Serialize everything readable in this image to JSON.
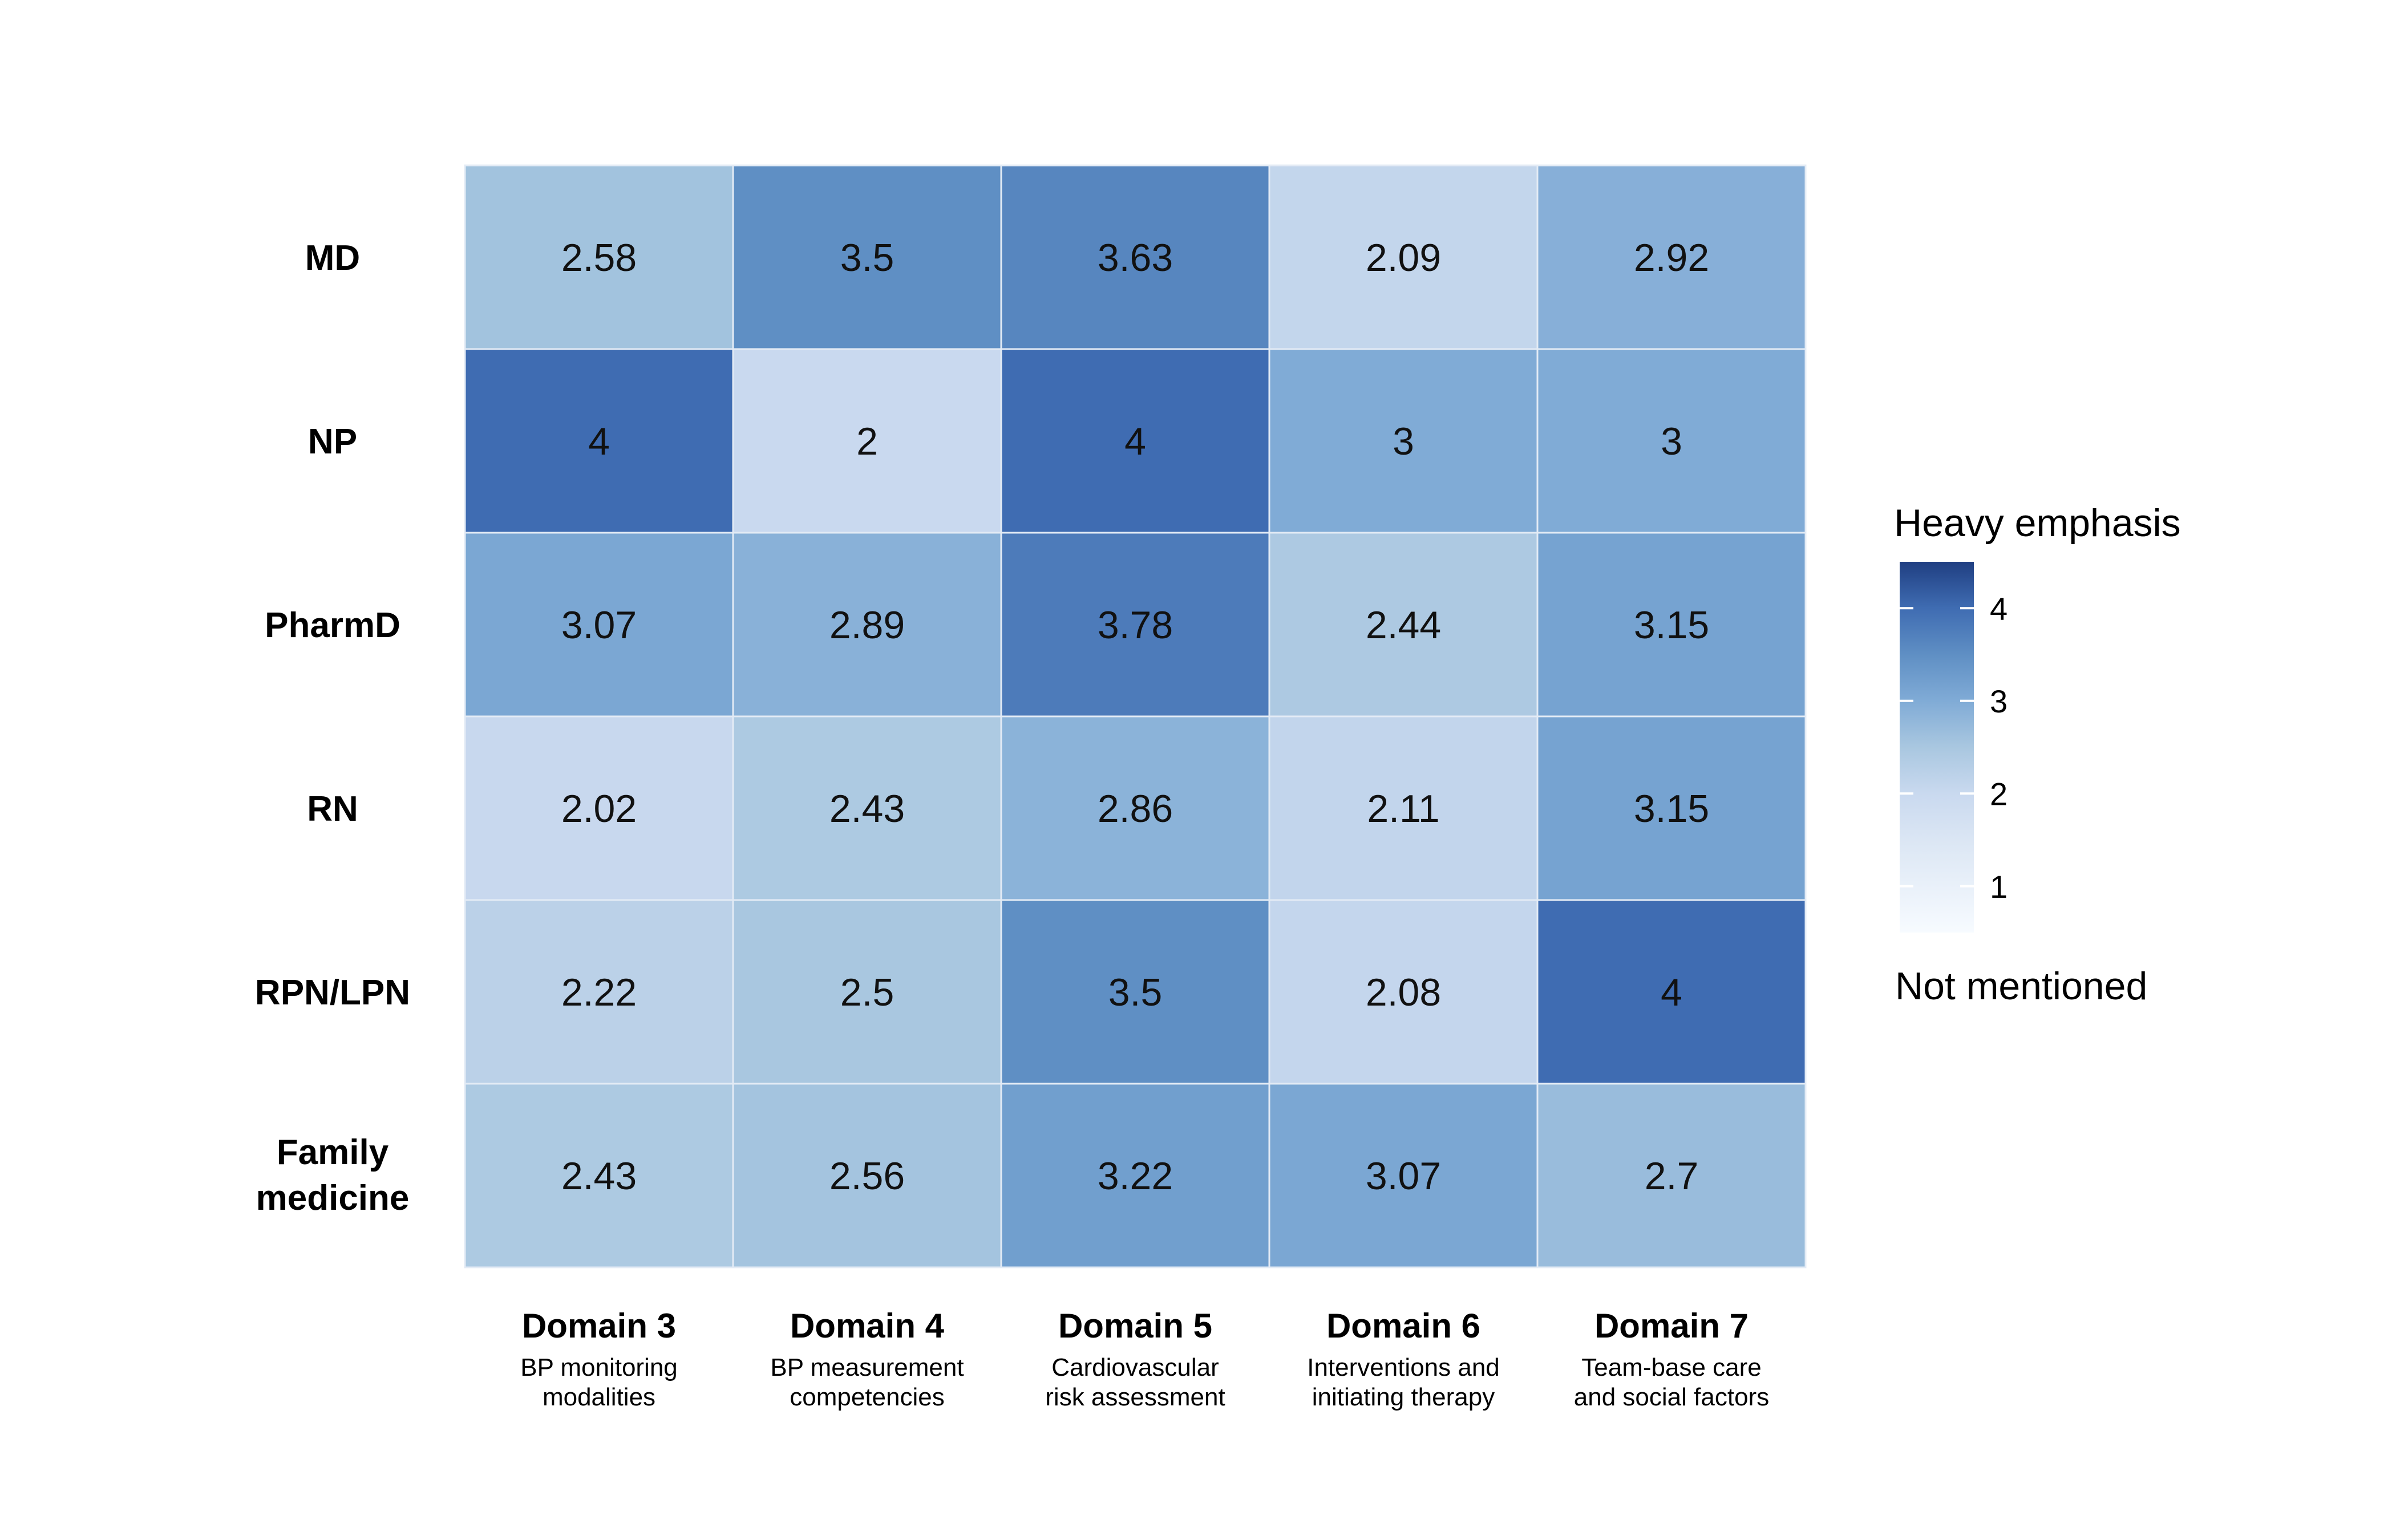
{
  "chart_data": {
    "type": "heatmap",
    "rows": [
      "MD",
      "NP",
      "PharmD",
      "RN",
      "RPN/LPN",
      "Family medicine"
    ],
    "columns": [
      {
        "title": "Domain 3",
        "subtitle": [
          "BP monitoring",
          "modalities"
        ]
      },
      {
        "title": "Domain 4",
        "subtitle": [
          "BP measurement",
          "competencies"
        ]
      },
      {
        "title": "Domain 5",
        "subtitle": [
          "Cardiovascular",
          "risk assessment"
        ]
      },
      {
        "title": "Domain 6",
        "subtitle": [
          "Interventions and",
          "initiating therapy"
        ]
      },
      {
        "title": "Domain 7",
        "subtitle": [
          "Team-base care",
          "and social factors"
        ]
      }
    ],
    "values": [
      [
        2.58,
        3.5,
        3.63,
        2.09,
        2.92
      ],
      [
        4,
        2,
        4,
        3,
        3
      ],
      [
        3.07,
        2.89,
        3.78,
        2.44,
        3.15
      ],
      [
        2.02,
        2.43,
        2.86,
        2.11,
        3.15
      ],
      [
        2.22,
        2.5,
        3.5,
        2.08,
        4
      ],
      [
        2.43,
        2.56,
        3.22,
        3.07,
        2.7
      ]
    ],
    "value_labels": [
      [
        "2.58",
        "3.5",
        "3.63",
        "2.09",
        "2.92"
      ],
      [
        "4",
        "2",
        "4",
        "3",
        "3"
      ],
      [
        "3.07",
        "2.89",
        "3.78",
        "2.44",
        "3.15"
      ],
      [
        "2.02",
        "2.43",
        "2.86",
        "2.11",
        "3.15"
      ],
      [
        "2.22",
        "2.5",
        "3.5",
        "2.08",
        "4"
      ],
      [
        "2.43",
        "2.56",
        "3.22",
        "3.07",
        "2.7"
      ]
    ],
    "color_scale": {
      "min": 0.5,
      "max": 4.5,
      "low_color": "#f7fbff",
      "high_color": "#203f82",
      "stops": [
        {
          "v": 0.5,
          "c": "#f7fbff"
        },
        {
          "v": 1.5,
          "c": "#dbe6f4"
        },
        {
          "v": 2.0,
          "c": "#c9d9ef"
        },
        {
          "v": 2.5,
          "c": "#a9c7e0"
        },
        {
          "v": 3.0,
          "c": "#80abd6"
        },
        {
          "v": 3.5,
          "c": "#5f8fc4"
        },
        {
          "v": 4.0,
          "c": "#3f6cb2"
        },
        {
          "v": 4.5,
          "c": "#203f82"
        }
      ],
      "ticks": [
        "1",
        "2",
        "3",
        "4"
      ],
      "top_label": "Heavy emphasis",
      "bottom_label": "Not mentioned"
    },
    "grid_line_color": "#e3ebf5"
  }
}
